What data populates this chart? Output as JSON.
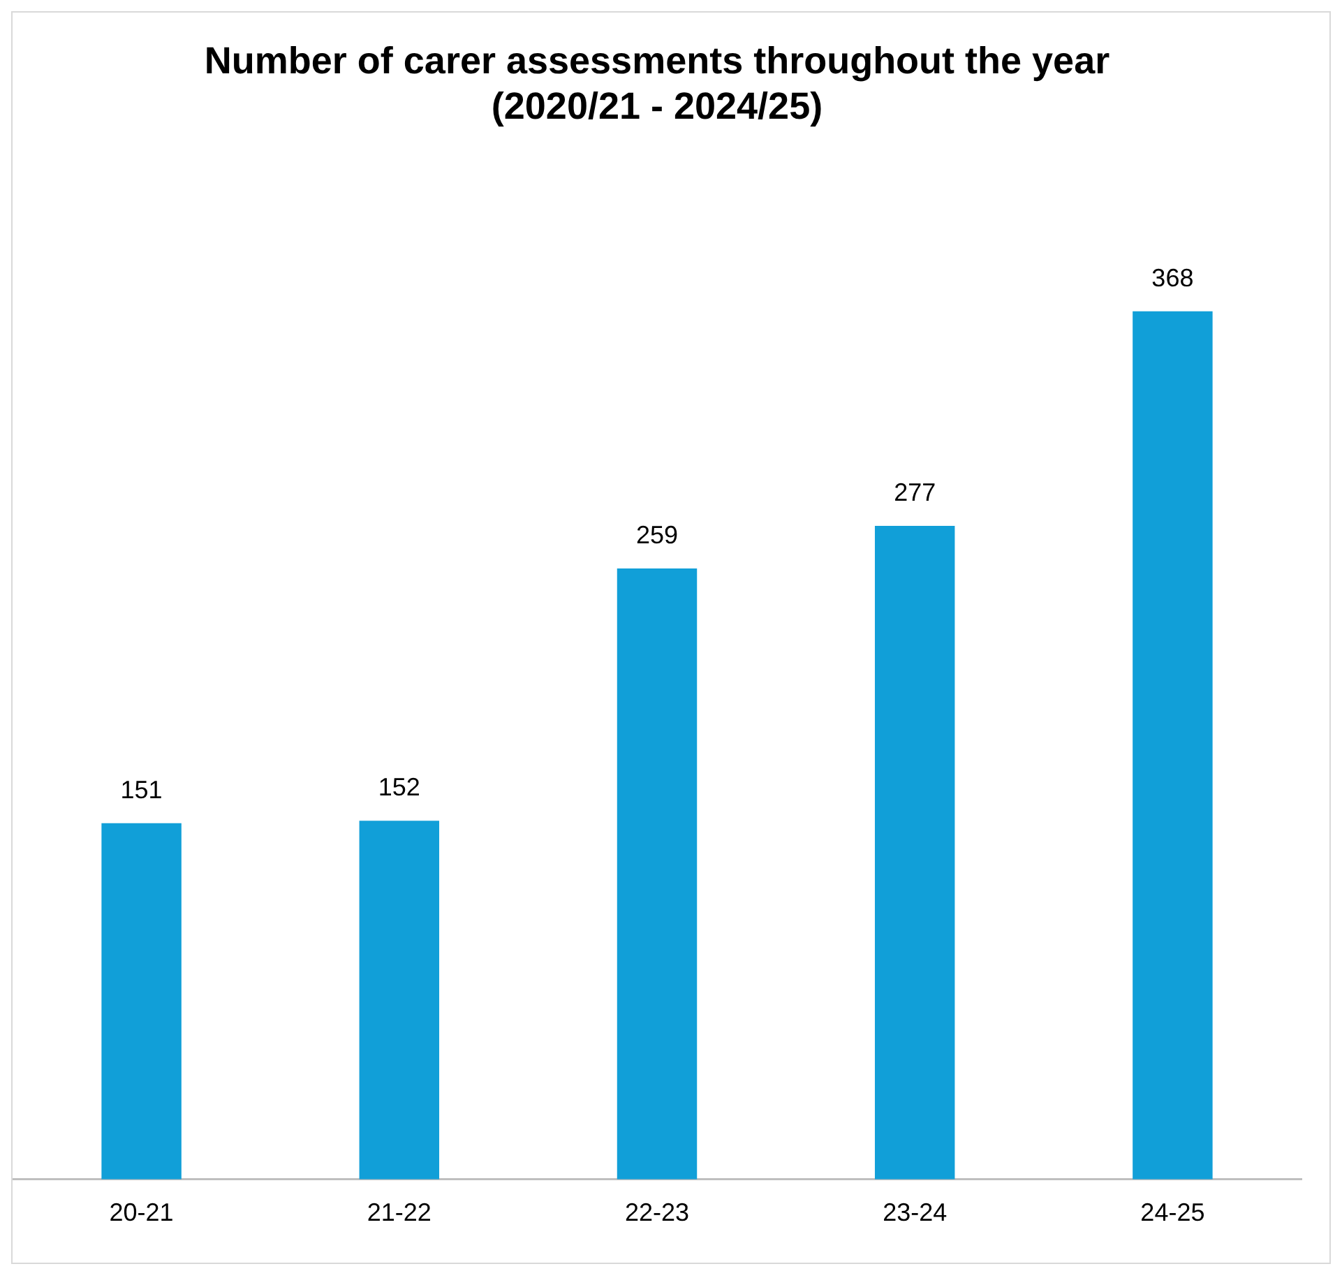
{
  "chart_data": {
    "type": "bar",
    "title": "Number of carer assessments throughout the year\n(2020/21 - 2024/25)",
    "categories": [
      "20-21",
      "21-22",
      "22-23",
      "23-24",
      "24-25"
    ],
    "values": [
      151,
      152,
      259,
      277,
      368
    ],
    "color": "#119fd8",
    "data_labels": true,
    "grid": false,
    "legend": false
  }
}
